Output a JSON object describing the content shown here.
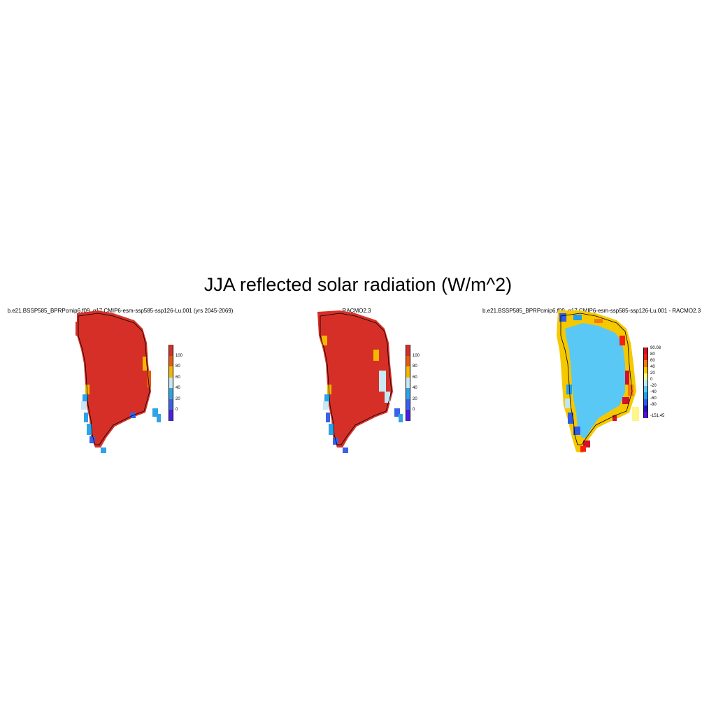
{
  "title": "JJA reflected solar radiation (W/m^2)",
  "panels": [
    {
      "id": "model",
      "subtitle": "b.e21.BSSP585_BPRPcmip6.f09_g17.CMIP6-esm-ssp585-ssp126-Lu.001 (yrs 2045-2069)",
      "colorbar": {
        "labels": [
          "100",
          "80",
          "60",
          "40",
          "20",
          "0"
        ],
        "colors": [
          "#d62f27",
          "#e85a0c",
          "#f5b800",
          "#c8e8f5",
          "#2fa3e6",
          "#3a62e8",
          "#4a1ee6"
        ]
      }
    },
    {
      "id": "racmo",
      "subtitle": "RACMO2.3",
      "colorbar": {
        "labels": [
          "100",
          "80",
          "60",
          "40",
          "20",
          "0"
        ],
        "colors": [
          "#d62f27",
          "#e85a0c",
          "#f5b800",
          "#c8e8f5",
          "#2fa3e6",
          "#3a62e8",
          "#4a1ee6"
        ]
      }
    },
    {
      "id": "difference",
      "subtitle": "b.e21.BSSP585_BPRPcmip6.f09_g17.CMIP6-esm-ssp585-ssp126-Lu.001 - RACMO2.3",
      "colorbar": {
        "labels": [
          "90.08",
          "80",
          "60",
          "40",
          "20",
          "0",
          "-20",
          "-40",
          "-60",
          "-80",
          "-151.45"
        ],
        "colors": [
          "#d4102a",
          "#f5200e",
          "#f57a10",
          "#f5c800",
          "#fff58c",
          "#bfe6f7",
          "#5ac8f5",
          "#1ea0ee",
          "#2f5ae8",
          "#1a14c8",
          "#5a0ae0"
        ]
      }
    }
  ]
}
